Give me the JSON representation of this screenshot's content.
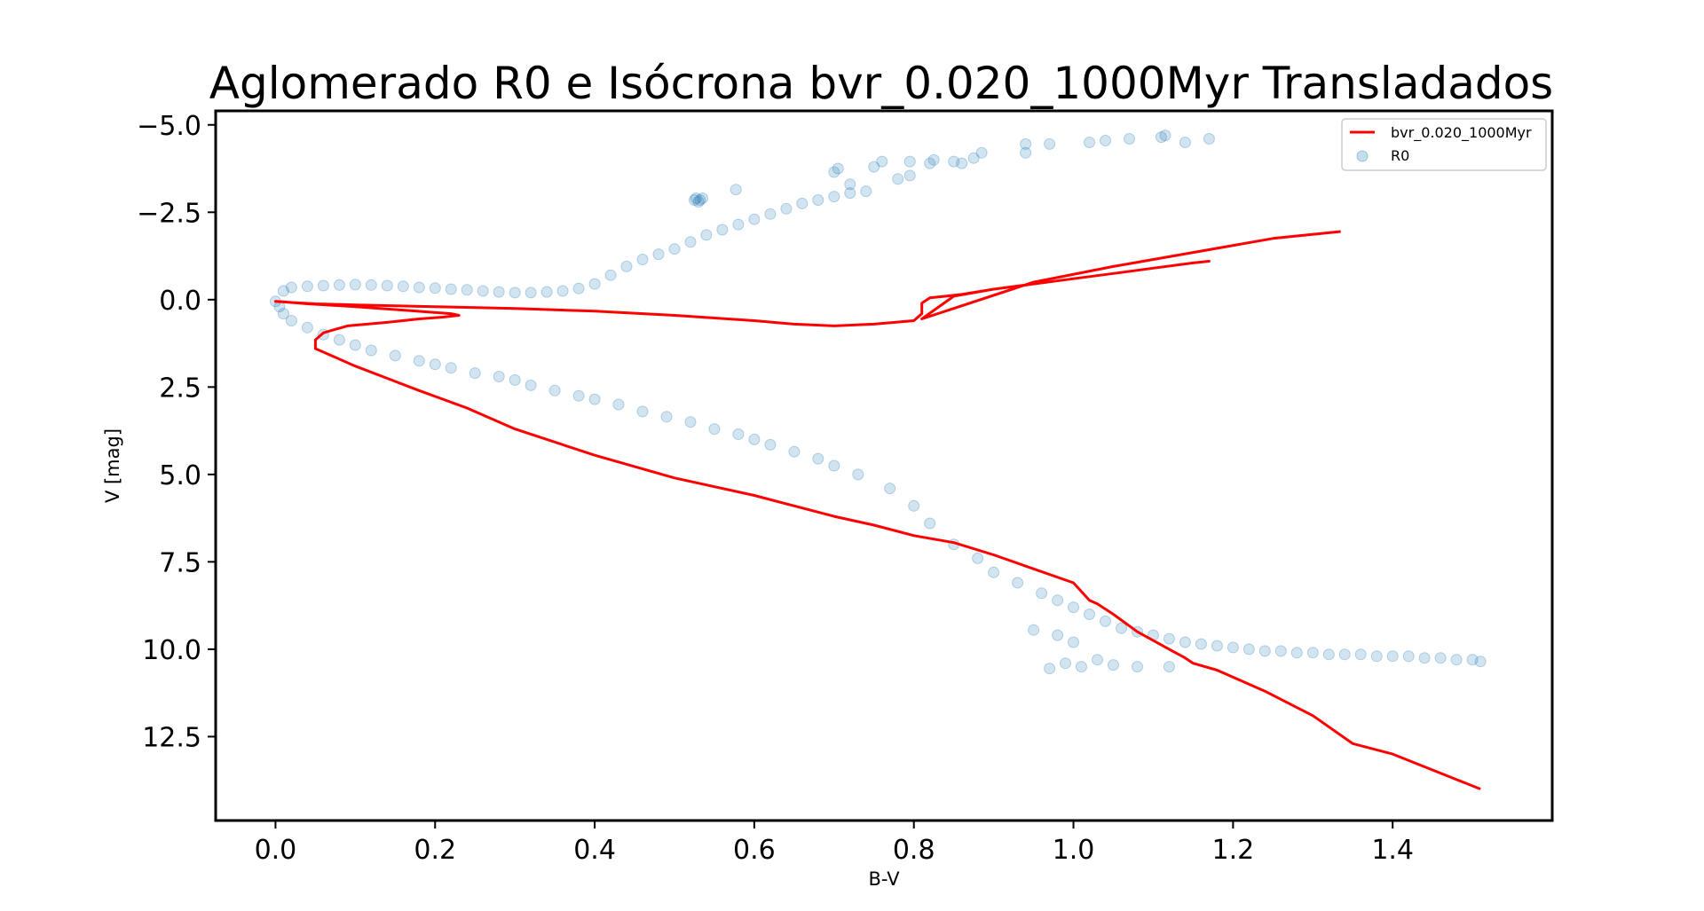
{
  "chart_data": {
    "type": "scatter",
    "title": "Aglomerado R0 e Isócrona bvr_0.020_1000Myr Transladados",
    "xlabel": "B-V",
    "ylabel": "V [mag]",
    "xlim": [
      -0.075,
      1.6
    ],
    "ylim": [
      14.9,
      -5.4
    ],
    "y_inverted": true,
    "grid": false,
    "legend_position": "top-right",
    "x_ticks": [
      0.0,
      0.2,
      0.4,
      0.6,
      0.8,
      1.0,
      1.2,
      1.4
    ],
    "x_tick_labels": [
      "0.0",
      "0.2",
      "0.4",
      "0.6",
      "0.8",
      "1.0",
      "1.2",
      "1.4"
    ],
    "y_ticks": [
      -5.0,
      -2.5,
      0.0,
      2.5,
      5.0,
      7.5,
      10.0,
      12.5
    ],
    "y_tick_labels": [
      "−5.0",
      "−2.5",
      "0.0",
      "2.5",
      "5.0",
      "7.5",
      "10.0",
      "12.5"
    ],
    "series": [
      {
        "name": "bvr_0.020_1000Myr",
        "kind": "line",
        "color": "#ff0000",
        "x": [
          1.51,
          1.4,
          1.35,
          1.3,
          1.24,
          1.18,
          1.15,
          1.14,
          1.12,
          1.08,
          1.05,
          1.03,
          1.02,
          1.0,
          0.95,
          0.9,
          0.85,
          0.8,
          0.75,
          0.7,
          0.65,
          0.6,
          0.5,
          0.4,
          0.3,
          0.24,
          0.18,
          0.14,
          0.1,
          0.07,
          0.05,
          0.05,
          0.06,
          0.09,
          0.14,
          0.18,
          0.21,
          0.23,
          0.22,
          0.16,
          0.1,
          0.04,
          0.01,
          0.0,
          0.02,
          0.05,
          0.1,
          0.2,
          0.3,
          0.4,
          0.5,
          0.6,
          0.65,
          0.7,
          0.75,
          0.8,
          0.81,
          0.81,
          0.82,
          0.84,
          0.86,
          0.9,
          0.95,
          1.0,
          1.05,
          1.1,
          1.15,
          1.17,
          1.15,
          1.1,
          1.05,
          1.0,
          0.95,
          0.9,
          0.85,
          0.81,
          0.85,
          0.95,
          1.05,
          1.15,
          1.25,
          1.335
        ],
        "y": [
          14.0,
          13.0,
          12.7,
          11.9,
          11.2,
          10.6,
          10.4,
          10.25,
          10.0,
          9.5,
          9.0,
          8.7,
          8.6,
          8.1,
          7.7,
          7.3,
          6.95,
          6.75,
          6.45,
          6.2,
          5.9,
          5.6,
          5.1,
          4.45,
          3.7,
          3.1,
          2.6,
          2.25,
          1.9,
          1.6,
          1.4,
          1.15,
          0.95,
          0.75,
          0.65,
          0.55,
          0.5,
          0.45,
          0.4,
          0.3,
          0.2,
          0.12,
          0.06,
          0.05,
          0.08,
          0.12,
          0.15,
          0.2,
          0.25,
          0.33,
          0.45,
          0.6,
          0.7,
          0.75,
          0.7,
          0.6,
          0.4,
          0.1,
          -0.05,
          -0.1,
          -0.15,
          -0.3,
          -0.45,
          -0.6,
          -0.75,
          -0.9,
          -1.05,
          -1.1,
          -1.05,
          -0.9,
          -0.75,
          -0.6,
          -0.45,
          -0.3,
          -0.1,
          0.55,
          0.25,
          -0.5,
          -0.95,
          -1.35,
          -1.75,
          -1.95
        ]
      },
      {
        "name": "R0",
        "kind": "scatter",
        "color": "#1f77b4",
        "opacity": 0.2,
        "x": [
          0.0,
          0.005,
          0.01,
          0.02,
          0.04,
          0.06,
          0.08,
          0.1,
          0.12,
          0.15,
          0.18,
          0.2,
          0.22,
          0.25,
          0.28,
          0.3,
          0.32,
          0.35,
          0.38,
          0.4,
          0.43,
          0.46,
          0.49,
          0.52,
          0.55,
          0.58,
          0.6,
          0.62,
          0.65,
          0.68,
          0.7,
          0.73,
          0.77,
          0.8,
          0.82,
          0.85,
          0.88,
          0.9,
          0.93,
          0.96,
          0.98,
          1.0,
          1.02,
          1.04,
          1.06,
          1.08,
          1.1,
          1.12,
          1.14,
          1.16,
          1.18,
          1.2,
          1.22,
          1.24,
          1.26,
          1.28,
          1.3,
          1.32,
          1.34,
          1.36,
          1.38,
          1.4,
          1.42,
          1.44,
          1.46,
          1.48,
          1.5,
          1.51,
          0.97,
          0.99,
          1.01,
          1.03,
          1.05,
          1.08,
          1.12,
          0.95,
          0.98,
          1.0,
          0.01,
          0.02,
          0.04,
          0.06,
          0.08,
          0.1,
          0.12,
          0.14,
          0.16,
          0.18,
          0.2,
          0.22,
          0.24,
          0.26,
          0.28,
          0.3,
          0.32,
          0.34,
          0.36,
          0.38,
          0.4,
          0.42,
          0.44,
          0.46,
          0.48,
          0.5,
          0.52,
          0.54,
          0.56,
          0.58,
          0.6,
          0.62,
          0.64,
          0.66,
          0.68,
          0.7,
          0.72,
          0.74,
          0.525,
          0.527,
          0.53,
          0.532,
          0.535,
          0.577,
          0.7,
          0.705,
          0.72,
          0.75,
          0.76,
          0.78,
          0.795,
          0.795,
          0.82,
          0.825,
          0.85,
          0.86,
          0.875,
          0.885,
          0.94,
          0.94,
          0.97,
          1.02,
          1.04,
          1.07,
          1.11,
          1.115,
          1.14,
          1.17
        ],
        "y": [
          0.05,
          0.2,
          0.4,
          0.6,
          0.8,
          1.0,
          1.15,
          1.3,
          1.45,
          1.6,
          1.75,
          1.85,
          1.95,
          2.1,
          2.2,
          2.3,
          2.45,
          2.6,
          2.75,
          2.85,
          3.0,
          3.2,
          3.35,
          3.5,
          3.7,
          3.85,
          4.0,
          4.15,
          4.35,
          4.55,
          4.75,
          5.0,
          5.4,
          5.9,
          6.4,
          7.0,
          7.4,
          7.8,
          8.1,
          8.4,
          8.6,
          8.8,
          9.0,
          9.2,
          9.4,
          9.5,
          9.6,
          9.7,
          9.8,
          9.85,
          9.9,
          9.95,
          10.0,
          10.05,
          10.05,
          10.1,
          10.1,
          10.15,
          10.15,
          10.15,
          10.2,
          10.2,
          10.2,
          10.25,
          10.25,
          10.3,
          10.3,
          10.35,
          10.55,
          10.4,
          10.5,
          10.3,
          10.45,
          10.5,
          10.5,
          9.45,
          9.6,
          9.8,
          -0.25,
          -0.35,
          -0.38,
          -0.4,
          -0.42,
          -0.43,
          -0.42,
          -0.4,
          -0.38,
          -0.35,
          -0.33,
          -0.3,
          -0.28,
          -0.25,
          -0.22,
          -0.2,
          -0.2,
          -0.22,
          -0.25,
          -0.32,
          -0.45,
          -0.7,
          -0.95,
          -1.15,
          -1.3,
          -1.45,
          -1.65,
          -1.85,
          -2.0,
          -2.15,
          -2.3,
          -2.45,
          -2.6,
          -2.75,
          -2.85,
          -2.95,
          -3.05,
          -3.1,
          -2.85,
          -2.9,
          -2.8,
          -2.85,
          -2.9,
          -3.15,
          -3.65,
          -3.75,
          -3.3,
          -3.8,
          -3.95,
          -3.45,
          -3.95,
          -3.55,
          -3.9,
          -4.0,
          -3.95,
          -3.9,
          -4.05,
          -4.2,
          -4.2,
          -4.45,
          -4.45,
          -4.5,
          -4.55,
          -4.6,
          -4.65,
          -4.7,
          -4.5,
          -4.6
        ]
      }
    ]
  }
}
